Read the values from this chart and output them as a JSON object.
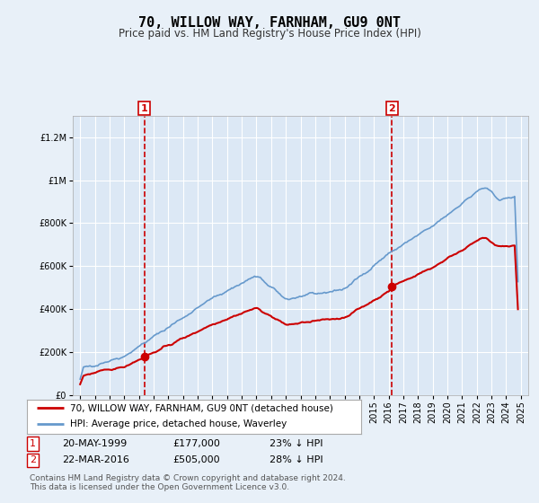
{
  "title": "70, WILLOW WAY, FARNHAM, GU9 0NT",
  "subtitle": "Price paid vs. HM Land Registry's House Price Index (HPI)",
  "legend_line1": "70, WILLOW WAY, FARNHAM, GU9 0NT (detached house)",
  "legend_line2": "HPI: Average price, detached house, Waverley",
  "footnote": "Contains HM Land Registry data © Crown copyright and database right 2024.\nThis data is licensed under the Open Government Licence v3.0.",
  "sale1_date": "20-MAY-1999",
  "sale1_price": "£177,000",
  "sale1_hpi": "23% ↓ HPI",
  "sale2_date": "22-MAR-2016",
  "sale2_price": "£505,000",
  "sale2_hpi": "28% ↓ HPI",
  "sale1_year": 1999.38,
  "sale1_value": 177000,
  "sale2_year": 2016.22,
  "sale2_value": 505000,
  "ylim": [
    0,
    1300000
  ],
  "xlim_start": 1994.5,
  "xlim_end": 2025.5,
  "background_color": "#e8f0f8",
  "plot_bg_color": "#dce8f5",
  "red_line_color": "#cc0000",
  "blue_line_color": "#6699cc",
  "dashed_line_color": "#cc0000",
  "marker_color": "#cc0000"
}
